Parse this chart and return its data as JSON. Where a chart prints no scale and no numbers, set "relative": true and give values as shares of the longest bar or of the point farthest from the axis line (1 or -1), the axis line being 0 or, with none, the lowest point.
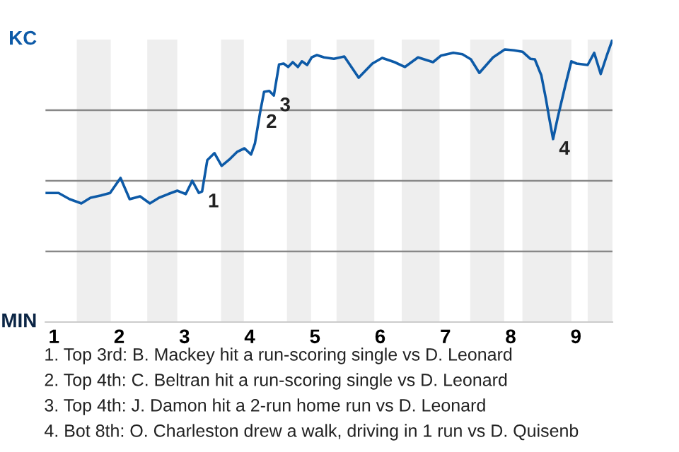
{
  "chart_data": {
    "type": "line",
    "relative": true,
    "x": [
      0.87,
      1.07,
      1.24,
      1.42,
      1.56,
      1.72,
      1.86,
      2.02,
      2.16,
      2.32,
      2.47,
      2.61,
      2.75,
      2.89,
      3.02,
      3.12,
      3.22,
      3.27,
      3.35,
      3.46,
      3.57,
      3.7,
      3.81,
      3.92,
      4.02,
      4.08,
      4.16,
      4.22,
      4.3,
      4.37,
      4.45,
      4.52,
      4.59,
      4.66,
      4.74,
      4.8,
      4.88,
      4.95,
      5.03,
      5.14,
      5.29,
      5.45,
      5.67,
      5.88,
      6.03,
      6.22,
      6.38,
      6.58,
      6.81,
      6.93,
      7.12,
      7.26,
      7.39,
      7.52,
      7.73,
      7.91,
      8.05,
      8.18,
      8.3,
      8.37,
      8.47,
      8.54,
      8.59,
      8.65,
      8.72,
      8.84,
      8.93,
      9.01,
      9.18,
      9.28,
      9.38,
      9.48,
      9.56
    ],
    "series": [
      {
        "color": "#0d5aa7",
        "values": [
          0.457,
          0.457,
          0.435,
          0.42,
          0.44,
          0.448,
          0.457,
          0.51,
          0.435,
          0.445,
          0.42,
          0.44,
          0.453,
          0.465,
          0.453,
          0.5,
          0.457,
          0.462,
          0.573,
          0.598,
          0.553,
          0.578,
          0.603,
          0.615,
          0.593,
          0.632,
          0.743,
          0.815,
          0.818,
          0.802,
          0.912,
          0.915,
          0.903,
          0.92,
          0.903,
          0.923,
          0.91,
          0.937,
          0.945,
          0.937,
          0.932,
          0.94,
          0.865,
          0.915,
          0.935,
          0.92,
          0.903,
          0.937,
          0.92,
          0.943,
          0.953,
          0.948,
          0.93,
          0.882,
          0.937,
          0.965,
          0.962,
          0.957,
          0.932,
          0.93,
          0.873,
          0.79,
          0.723,
          0.648,
          0.723,
          0.84,
          0.923,
          0.915,
          0.91,
          0.953,
          0.878,
          0.948,
          1.0
        ]
      }
    ],
    "xlim": [
      0.87,
      9.56
    ],
    "xticks": [
      1,
      2,
      3,
      4,
      5,
      6,
      7,
      8,
      9
    ],
    "grid": "y",
    "bands": [
      {
        "axis": "x",
        "from": 1.35,
        "to": 1.87,
        "color": "#eeeeee"
      },
      {
        "axis": "x",
        "from": 2.43,
        "to": 2.89,
        "color": "#eeeeee"
      },
      {
        "axis": "x",
        "from": 3.56,
        "to": 3.91,
        "color": "#eeeeee"
      },
      {
        "axis": "x",
        "from": 4.57,
        "to": 4.94,
        "color": "#eeeeee"
      },
      {
        "axis": "x",
        "from": 5.33,
        "to": 5.91,
        "color": "#eeeeee"
      },
      {
        "axis": "x",
        "from": 6.33,
        "to": 6.91,
        "color": "#eeeeee"
      },
      {
        "axis": "x",
        "from": 7.38,
        "to": 7.9,
        "color": "#eeeeee"
      },
      {
        "axis": "x",
        "from": 8.18,
        "to": 8.93,
        "color": "#eeeeee"
      },
      {
        "axis": "x",
        "from": 9.18,
        "to": 9.56,
        "color": "#eeeeee"
      }
    ],
    "annotations": [
      {
        "text": "1",
        "x": 3.27,
        "y": 0.462
      },
      {
        "text": "2",
        "x": 4.16,
        "y": 0.743
      },
      {
        "text": "3",
        "x": 4.37,
        "y": 0.802
      },
      {
        "text": "4",
        "x": 8.65,
        "y": 0.648
      },
      "KC",
      "MIN",
      "1. Top 3rd: B. Mackey hit a run-scoring single vs D. Leonard",
      "2. Top 4th: C. Beltran hit a run-scoring single vs D. Leonard",
      "3. Top 4th: J. Damon hit a 2-run home run vs D. Leonard",
      "4. Bot 8th: O. Charleston drew a walk, driving in 1 run vs D. Quisenb"
    ],
    "marker": "none",
    "line_style": "solid"
  }
}
